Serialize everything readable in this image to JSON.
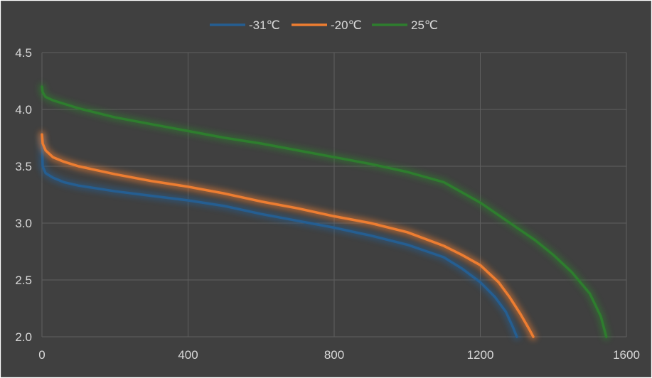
{
  "chart_data": {
    "type": "line",
    "title": "",
    "xlabel": "",
    "ylabel": "",
    "xlim": [
      0,
      1600
    ],
    "ylim": [
      2.0,
      4.5
    ],
    "x_ticks": [
      "0",
      "400",
      "800",
      "1200",
      "1600"
    ],
    "y_ticks": [
      "2.0",
      "2.5",
      "3.0",
      "3.5",
      "4.0",
      "4.5"
    ],
    "grid": true,
    "legend_position": "top-center",
    "series": [
      {
        "name": "-31℃",
        "color": "#255e91",
        "points": [
          [
            0,
            3.75
          ],
          [
            2,
            3.5
          ],
          [
            10,
            3.44
          ],
          [
            30,
            3.4
          ],
          [
            60,
            3.36
          ],
          [
            100,
            3.33
          ],
          [
            200,
            3.28
          ],
          [
            300,
            3.24
          ],
          [
            400,
            3.2
          ],
          [
            500,
            3.15
          ],
          [
            600,
            3.08
          ],
          [
            700,
            3.02
          ],
          [
            800,
            2.96
          ],
          [
            900,
            2.89
          ],
          [
            1000,
            2.81
          ],
          [
            1100,
            2.7
          ],
          [
            1150,
            2.6
          ],
          [
            1200,
            2.48
          ],
          [
            1240,
            2.35
          ],
          [
            1270,
            2.22
          ],
          [
            1290,
            2.08
          ],
          [
            1300,
            2.0
          ]
        ]
      },
      {
        "name": "-20℃",
        "color": "#ed7d31",
        "points": [
          [
            0,
            3.78
          ],
          [
            2,
            3.7
          ],
          [
            10,
            3.64
          ],
          [
            30,
            3.58
          ],
          [
            60,
            3.54
          ],
          [
            100,
            3.5
          ],
          [
            200,
            3.43
          ],
          [
            300,
            3.37
          ],
          [
            400,
            3.32
          ],
          [
            500,
            3.26
          ],
          [
            600,
            3.19
          ],
          [
            700,
            3.13
          ],
          [
            800,
            3.06
          ],
          [
            900,
            3.0
          ],
          [
            1000,
            2.92
          ],
          [
            1100,
            2.8
          ],
          [
            1150,
            2.72
          ],
          [
            1200,
            2.63
          ],
          [
            1250,
            2.48
          ],
          [
            1280,
            2.35
          ],
          [
            1310,
            2.2
          ],
          [
            1335,
            2.06
          ],
          [
            1345,
            2.0
          ]
        ]
      },
      {
        "name": "25℃",
        "color": "#2e7d2e",
        "points": [
          [
            0,
            4.2
          ],
          [
            2,
            4.15
          ],
          [
            10,
            4.11
          ],
          [
            30,
            4.08
          ],
          [
            60,
            4.05
          ],
          [
            100,
            4.01
          ],
          [
            200,
            3.93
          ],
          [
            300,
            3.87
          ],
          [
            400,
            3.81
          ],
          [
            500,
            3.75
          ],
          [
            600,
            3.7
          ],
          [
            700,
            3.64
          ],
          [
            800,
            3.58
          ],
          [
            900,
            3.52
          ],
          [
            1000,
            3.45
          ],
          [
            1100,
            3.36
          ],
          [
            1200,
            3.18
          ],
          [
            1300,
            2.96
          ],
          [
            1350,
            2.85
          ],
          [
            1400,
            2.72
          ],
          [
            1450,
            2.57
          ],
          [
            1500,
            2.38
          ],
          [
            1530,
            2.18
          ],
          [
            1545,
            2.0
          ]
        ]
      }
    ]
  }
}
